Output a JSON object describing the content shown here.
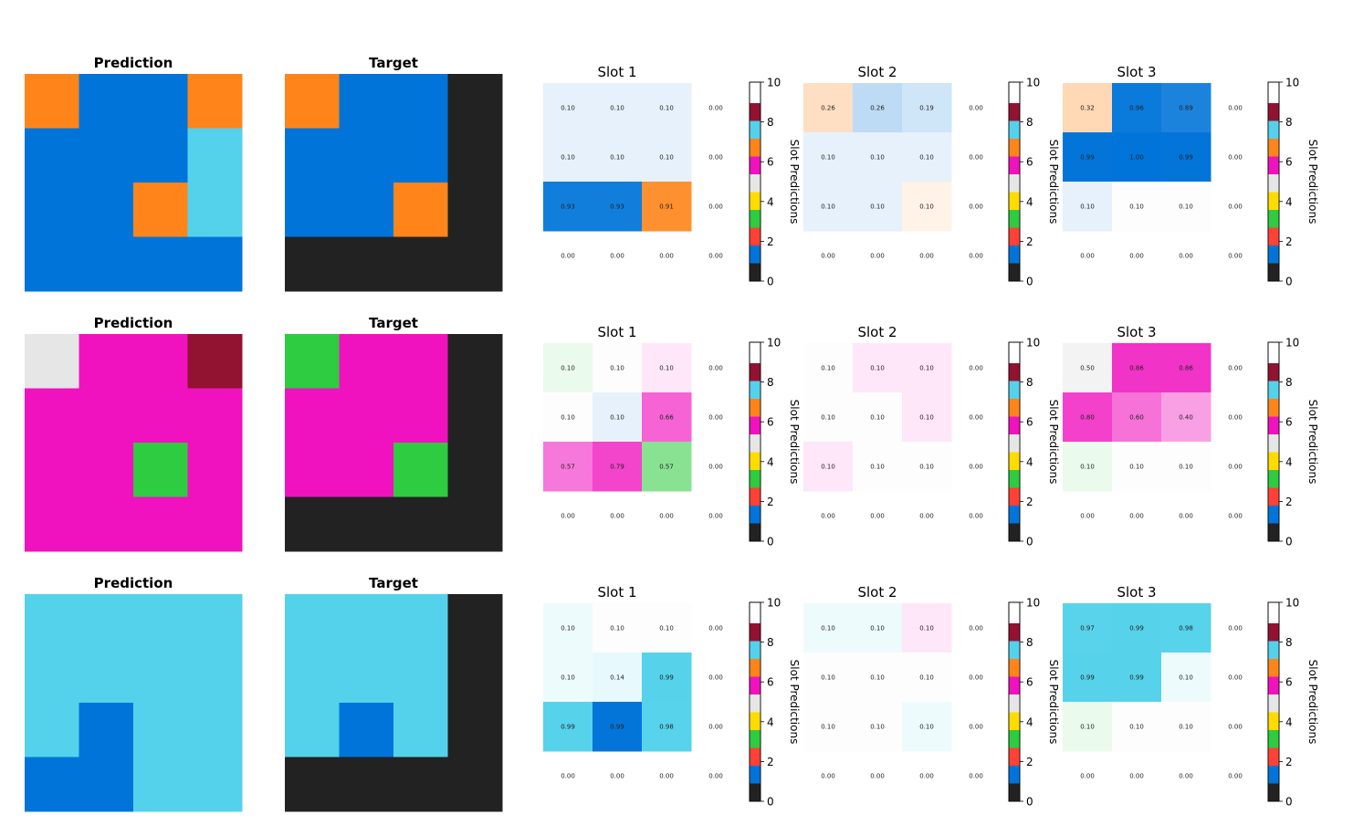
{
  "palette": [
    "#222222",
    "#0074d9",
    "#ff4136",
    "#2ecc40",
    "#ffdc00",
    "#e6e6e6",
    "#f012be",
    "#ff851b",
    "#54d2eb",
    "#921231"
  ],
  "colorbar": {
    "label": "Slot Predictions",
    "ticks": [
      "0",
      "2",
      "4",
      "6",
      "8",
      "10"
    ],
    "colors": [
      "#222222",
      "#0074d9",
      "#ff4136",
      "#2ecc40",
      "#ffdc00",
      "#e6e6e6",
      "#f012be",
      "#ff851b",
      "#54d2eb",
      "#921231"
    ]
  },
  "chart_data": [
    {
      "type": "heatmap",
      "title": "Prediction",
      "row": 1,
      "grid": [
        [
          7,
          1,
          1,
          7
        ],
        [
          1,
          1,
          1,
          8
        ],
        [
          1,
          1,
          7,
          8
        ],
        [
          1,
          1,
          1,
          1
        ]
      ]
    },
    {
      "type": "heatmap",
      "title": "Target",
      "row": 1,
      "grid": [
        [
          7,
          1,
          1,
          0
        ],
        [
          1,
          1,
          1,
          0
        ],
        [
          1,
          1,
          7,
          0
        ],
        [
          0,
          0,
          0,
          0
        ]
      ]
    },
    {
      "type": "heatmap",
      "title": "Slot 1",
      "row": 1,
      "colors": [
        [
          1,
          1,
          1,
          null
        ],
        [
          1,
          1,
          1,
          null
        ],
        [
          1,
          1,
          7,
          null
        ],
        [
          null,
          null,
          null,
          null
        ]
      ],
      "values": [
        [
          "0.10",
          "0.10",
          "0.10",
          "0.00"
        ],
        [
          "0.10",
          "0.10",
          "0.10",
          "0.00"
        ],
        [
          "0.93",
          "0.93",
          "0.91",
          "0.00"
        ],
        [
          "0.00",
          "0.00",
          "0.00",
          "0.00"
        ]
      ]
    },
    {
      "type": "heatmap",
      "title": "Slot 2",
      "row": 1,
      "colors": [
        [
          7,
          1,
          1,
          null
        ],
        [
          1,
          1,
          1,
          null
        ],
        [
          1,
          1,
          7,
          null
        ],
        [
          null,
          null,
          null,
          null
        ]
      ],
      "values": [
        [
          "0.26",
          "0.26",
          "0.19",
          "0.00"
        ],
        [
          "0.10",
          "0.10",
          "0.10",
          "0.00"
        ],
        [
          "0.10",
          "0.10",
          "0.10",
          "0.00"
        ],
        [
          "0.00",
          "0.00",
          "0.00",
          "0.00"
        ]
      ]
    },
    {
      "type": "heatmap",
      "title": "Slot 3",
      "row": 1,
      "colors": [
        [
          7,
          1,
          1,
          null
        ],
        [
          1,
          1,
          1,
          null
        ],
        [
          1,
          5,
          5,
          null
        ],
        [
          null,
          null,
          null,
          null
        ]
      ],
      "values": [
        [
          "0.32",
          "0.96",
          "0.89",
          "0.00"
        ],
        [
          "0.99",
          "1.00",
          "0.99",
          "0.00"
        ],
        [
          "0.10",
          "0.10",
          "0.10",
          "0.00"
        ],
        [
          "0.00",
          "0.00",
          "0.00",
          "0.00"
        ]
      ]
    },
    {
      "type": "heatmap",
      "title": "Prediction",
      "row": 2,
      "grid": [
        [
          5,
          6,
          6,
          9
        ],
        [
          6,
          6,
          6,
          6
        ],
        [
          6,
          6,
          3,
          6
        ],
        [
          6,
          6,
          6,
          6
        ]
      ]
    },
    {
      "type": "heatmap",
      "title": "Target",
      "row": 2,
      "grid": [
        [
          3,
          6,
          6,
          0
        ],
        [
          6,
          6,
          6,
          0
        ],
        [
          6,
          6,
          3,
          0
        ],
        [
          0,
          0,
          0,
          0
        ]
      ]
    },
    {
      "type": "heatmap",
      "title": "Slot 1",
      "row": 2,
      "colors": [
        [
          3,
          5,
          6,
          null
        ],
        [
          5,
          1,
          6,
          null
        ],
        [
          6,
          6,
          3,
          null
        ],
        [
          null,
          null,
          null,
          null
        ]
      ],
      "values": [
        [
          "0.10",
          "0.10",
          "0.10",
          "0.00"
        ],
        [
          "0.10",
          "0.10",
          "0.66",
          "0.00"
        ],
        [
          "0.57",
          "0.79",
          "0.57",
          "0.00"
        ],
        [
          "0.00",
          "0.00",
          "0.00",
          "0.00"
        ]
      ]
    },
    {
      "type": "heatmap",
      "title": "Slot 2",
      "row": 2,
      "colors": [
        [
          5,
          6,
          6,
          null
        ],
        [
          5,
          5,
          6,
          null
        ],
        [
          6,
          5,
          5,
          null
        ],
        [
          null,
          null,
          null,
          null
        ]
      ],
      "values": [
        [
          "0.10",
          "0.10",
          "0.10",
          "0.00"
        ],
        [
          "0.10",
          "0.10",
          "0.10",
          "0.00"
        ],
        [
          "0.10",
          "0.10",
          "0.10",
          "0.00"
        ],
        [
          "0.00",
          "0.00",
          "0.00",
          "0.00"
        ]
      ]
    },
    {
      "type": "heatmap",
      "title": "Slot 3",
      "row": 2,
      "colors": [
        [
          5,
          6,
          6,
          null
        ],
        [
          6,
          6,
          6,
          null
        ],
        [
          3,
          5,
          5,
          null
        ],
        [
          null,
          null,
          null,
          null
        ]
      ],
      "values": [
        [
          "0.50",
          "0.86",
          "0.86",
          "0.00"
        ],
        [
          "0.80",
          "0.60",
          "0.40",
          "0.00"
        ],
        [
          "0.10",
          "0.10",
          "0.10",
          "0.00"
        ],
        [
          "0.00",
          "0.00",
          "0.00",
          "0.00"
        ]
      ]
    },
    {
      "type": "heatmap",
      "title": "Prediction",
      "row": 3,
      "grid": [
        [
          8,
          8,
          8,
          8
        ],
        [
          8,
          8,
          8,
          8
        ],
        [
          8,
          1,
          8,
          8
        ],
        [
          1,
          1,
          8,
          8
        ]
      ]
    },
    {
      "type": "heatmap",
      "title": "Target",
      "row": 3,
      "grid": [
        [
          8,
          8,
          8,
          0
        ],
        [
          8,
          8,
          8,
          0
        ],
        [
          8,
          1,
          8,
          0
        ],
        [
          0,
          0,
          0,
          0
        ]
      ]
    },
    {
      "type": "heatmap",
      "title": "Slot 1",
      "row": 3,
      "colors": [
        [
          8,
          5,
          5,
          null
        ],
        [
          8,
          8,
          8,
          null
        ],
        [
          8,
          1,
          8,
          null
        ],
        [
          null,
          null,
          null,
          null
        ]
      ],
      "values": [
        [
          "0.10",
          "0.10",
          "0.10",
          "0.00"
        ],
        [
          "0.10",
          "0.14",
          "0.99",
          "0.00"
        ],
        [
          "0.99",
          "0.99",
          "0.98",
          "0.00"
        ],
        [
          "0.00",
          "0.00",
          "0.00",
          "0.00"
        ]
      ]
    },
    {
      "type": "heatmap",
      "title": "Slot 2",
      "row": 3,
      "colors": [
        [
          8,
          8,
          6,
          null
        ],
        [
          5,
          5,
          5,
          null
        ],
        [
          5,
          5,
          8,
          null
        ],
        [
          null,
          null,
          null,
          null
        ]
      ],
      "values": [
        [
          "0.10",
          "0.10",
          "0.10",
          "0.00"
        ],
        [
          "0.10",
          "0.10",
          "0.10",
          "0.00"
        ],
        [
          "0.10",
          "0.10",
          "0.10",
          "0.00"
        ],
        [
          "0.00",
          "0.00",
          "0.00",
          "0.00"
        ]
      ]
    },
    {
      "type": "heatmap",
      "title": "Slot 3",
      "row": 3,
      "colors": [
        [
          8,
          8,
          8,
          null
        ],
        [
          8,
          8,
          8,
          null
        ],
        [
          3,
          5,
          5,
          null
        ],
        [
          null,
          null,
          null,
          null
        ]
      ],
      "values": [
        [
          "0.97",
          "0.99",
          "0.98",
          "0.00"
        ],
        [
          "0.99",
          "0.99",
          "0.10",
          "0.00"
        ],
        [
          "0.10",
          "0.10",
          "0.10",
          "0.00"
        ],
        [
          "0.00",
          "0.00",
          "0.00",
          "0.00"
        ]
      ]
    }
  ]
}
